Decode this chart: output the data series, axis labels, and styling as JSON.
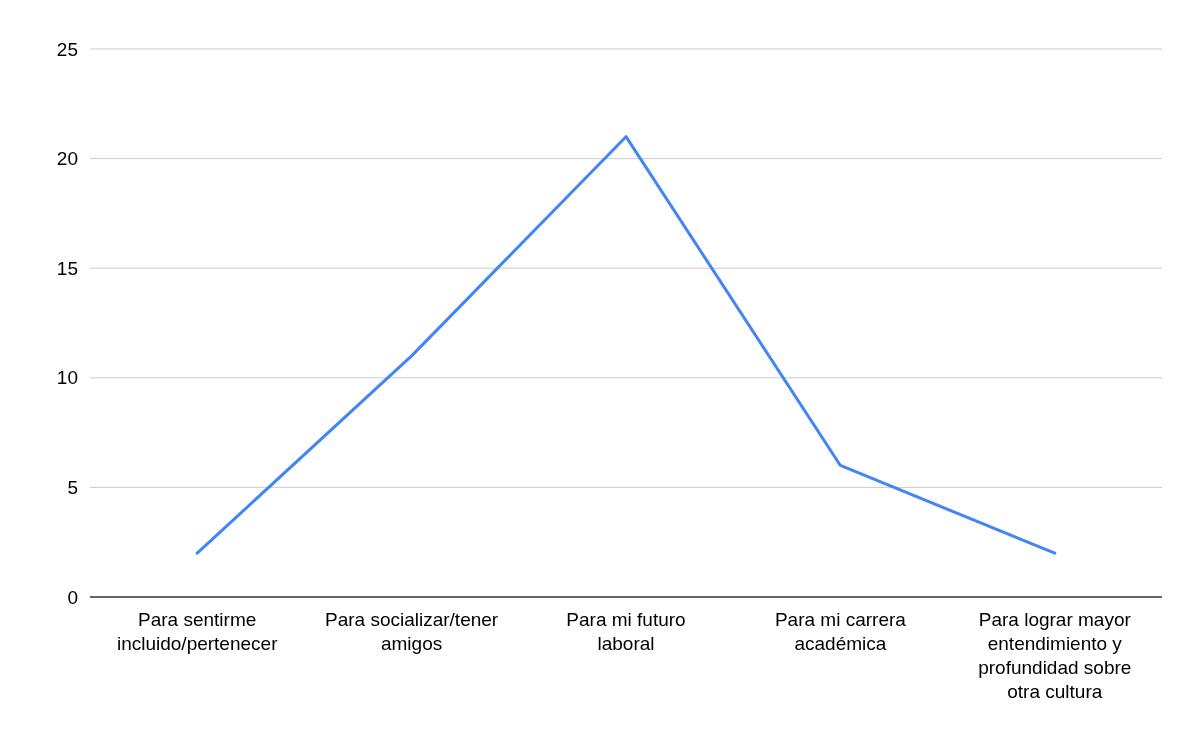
{
  "chart_data": {
    "type": "line",
    "categories": [
      "Para sentirme incluido/pertenecer",
      "Para socializar/tener amigos",
      "Para mi futuro laboral",
      "Para mi carrera académica",
      "Para lograr mayor entendimiento y profundidad sobre otra cultura"
    ],
    "series": [
      {
        "color": "#4285f4",
        "values": [
          2,
          11,
          21,
          6,
          2
        ]
      }
    ],
    "ylim": [
      0,
      25
    ],
    "yticks": [
      0,
      5,
      10,
      15,
      20,
      25
    ],
    "grid": "y",
    "marker": "none",
    "line_style": "solid"
  }
}
